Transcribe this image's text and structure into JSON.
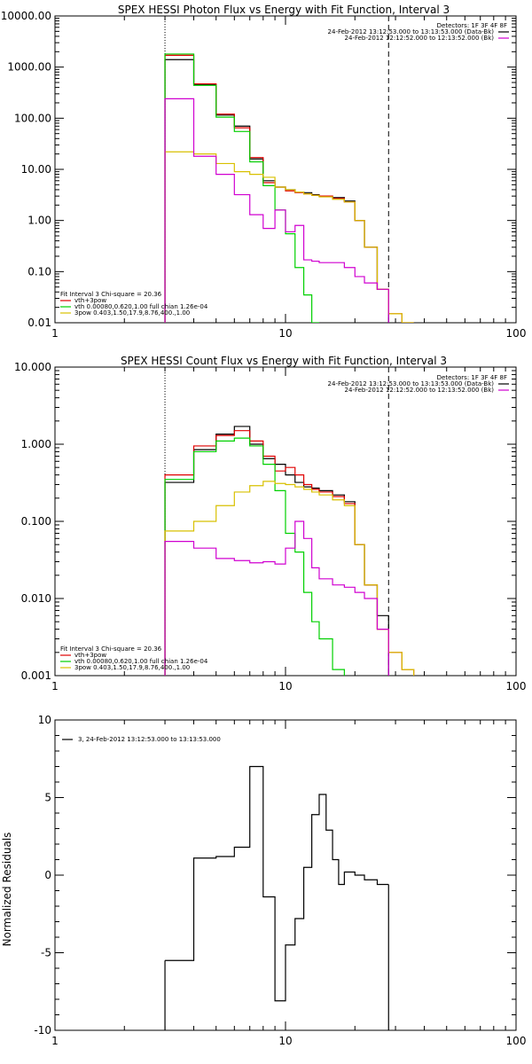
{
  "colors": {
    "background": "#ffffff",
    "axis": "#000000",
    "black_series": "#000000",
    "red_series": "#e00000",
    "green_series": "#00d000",
    "yellow_series": "#d8c000",
    "magenta_series": "#d000d0"
  },
  "chart_data": [
    {
      "type": "line",
      "title": "SPEX HESSI Photon Flux vs Energy with Fit Function, Interval 3",
      "xscale": "log",
      "yscale": "log",
      "xlim": [
        1,
        100
      ],
      "ylim": [
        0.01,
        10000
      ],
      "xticks": [
        1,
        10,
        100
      ],
      "xtick_labels": [
        "1",
        "10",
        "100"
      ],
      "yticks": [
        0.01,
        0.1,
        1,
        10,
        100,
        1000,
        10000
      ],
      "ytick_labels": [
        "0.01",
        "0.10",
        "1.00",
        "10.00",
        "100.00",
        "1000.00",
        "10000.00"
      ],
      "vlines": [
        {
          "x": 3.0,
          "style": "dotted"
        },
        {
          "x": 28.0,
          "style": "dashed"
        }
      ],
      "legend_top_right": {
        "header": "Detectors: 1F 3F 4F 8F",
        "lines": [
          {
            "text": "24-Feb-2012 13:12:53.000 to 13:13:53.000 (Data-Bk)",
            "color": "#000000"
          },
          {
            "text": "24-Feb-2012 12:12:52.000 to 12:13:52.000 (Bk)",
            "color": "#d000d0"
          }
        ]
      },
      "legend_bottom_left": {
        "header": "Fit Interval 3   Chi-square = 20.36",
        "lines": [
          {
            "text": "vth+3pow",
            "color": "#e00000"
          },
          {
            "text": "vth 0.00080,0.620,1.00   full chian 1.26e-04",
            "color": "#00d000"
          },
          {
            "text": "3pow 0.403,1.50,17.9,8.76,400.,1.00",
            "color": "#d8c000"
          }
        ]
      },
      "bin_edges": [
        3,
        4,
        5,
        6,
        7,
        8,
        9,
        10,
        11,
        12,
        13,
        14,
        16,
        18,
        20,
        22,
        25,
        28,
        32,
        36
      ],
      "series": [
        {
          "name": "Data-Bk",
          "color": "#000000",
          "values": [
            1400,
            450,
            115,
            70,
            16,
            6,
            4.5,
            4.0,
            3.6,
            3.5,
            3.2,
            3.0,
            2.8,
            2.4,
            1.0,
            0.3,
            0.045,
            null,
            null
          ]
        },
        {
          "name": "vth+3pow",
          "color": "#e00000",
          "values": [
            1700,
            470,
            120,
            65,
            17,
            5.5,
            4.5,
            3.8,
            3.5,
            3.3,
            3.1,
            3.0,
            2.7,
            2.3,
            1.0,
            0.3,
            0.045,
            0.015,
            0.008
          ]
        },
        {
          "name": "vth",
          "color": "#00d000",
          "values": [
            1800,
            440,
            105,
            55,
            14,
            4.8,
            1.6,
            0.55,
            0.12,
            0.035,
            0.009,
            null,
            null,
            null,
            null,
            null,
            null,
            null,
            null
          ]
        },
        {
          "name": "3pow",
          "color": "#d8c000",
          "values": [
            22,
            20,
            13,
            9,
            8,
            7,
            4.5,
            4.0,
            3.6,
            3.3,
            3.1,
            2.9,
            2.6,
            2.3,
            1.0,
            0.3,
            0.045,
            0.015,
            0.008
          ]
        },
        {
          "name": "Bk",
          "color": "#d000d0",
          "values": [
            240,
            18,
            8,
            3.2,
            1.3,
            0.7,
            1.6,
            0.6,
            0.8,
            0.17,
            0.16,
            0.15,
            0.15,
            0.12,
            0.08,
            0.06,
            0.045,
            null,
            null
          ]
        }
      ]
    },
    {
      "type": "line",
      "title": "SPEX HESSI Count Flux vs Energy with Fit Function, Interval 3",
      "xscale": "log",
      "yscale": "log",
      "xlim": [
        1,
        100
      ],
      "ylim": [
        0.001,
        10
      ],
      "xticks": [
        1,
        10,
        100
      ],
      "xtick_labels": [
        "1",
        "10",
        "100"
      ],
      "yticks": [
        0.001,
        0.01,
        0.1,
        1,
        10
      ],
      "ytick_labels": [
        "0.001",
        "0.010",
        "0.100",
        "1.000",
        "10.000"
      ],
      "vlines": [
        {
          "x": 3.0,
          "style": "dotted"
        },
        {
          "x": 28.0,
          "style": "dashed"
        }
      ],
      "legend_top_right": {
        "header": "Detectors: 1F 3F 4F 8F",
        "lines": [
          {
            "text": "24-Feb-2012 13:12:53.000 to 13:13:53.000 (Data-Bk)",
            "color": "#000000"
          },
          {
            "text": "24-Feb-2012 12:12:52.000 to 12:13:52.000 (Bk)",
            "color": "#d000d0"
          }
        ]
      },
      "legend_bottom_left": {
        "header": "Fit Interval 3   Chi-square = 20.36",
        "lines": [
          {
            "text": "vth+3pow",
            "color": "#e00000"
          },
          {
            "text": "vth 0.00080,0.620,1.00   full chian 1.26e-04",
            "color": "#00d000"
          },
          {
            "text": "3pow 0.403,1.50,17.9,8.76,400.,1.00",
            "color": "#d8c000"
          }
        ]
      },
      "bin_edges": [
        3,
        4,
        5,
        6,
        7,
        8,
        9,
        10,
        11,
        12,
        13,
        14,
        16,
        18,
        20,
        22,
        25,
        28,
        32,
        36
      ],
      "series": [
        {
          "name": "Data-Bk",
          "color": "#000000",
          "values": [
            0.32,
            0.85,
            1.35,
            1.7,
            1.0,
            0.65,
            0.55,
            0.4,
            0.32,
            0.28,
            0.27,
            0.25,
            0.22,
            0.18,
            0.05,
            0.015,
            0.006,
            null,
            null
          ]
        },
        {
          "name": "vth+3pow",
          "color": "#e00000",
          "values": [
            0.4,
            0.95,
            1.3,
            1.5,
            1.1,
            0.7,
            0.45,
            0.5,
            0.4,
            0.3,
            0.26,
            0.24,
            0.21,
            0.17,
            0.05,
            0.015,
            0.004,
            0.002,
            0.0012
          ]
        },
        {
          "name": "vth",
          "color": "#00d000",
          "values": [
            0.35,
            0.8,
            1.1,
            1.2,
            0.95,
            0.55,
            0.25,
            0.07,
            0.04,
            0.012,
            0.005,
            0.003,
            0.0012,
            null,
            null,
            null,
            null,
            null,
            null
          ]
        },
        {
          "name": "3pow",
          "color": "#d8c000",
          "values": [
            0.075,
            0.1,
            0.16,
            0.24,
            0.29,
            0.33,
            0.31,
            0.3,
            0.28,
            0.26,
            0.24,
            0.22,
            0.19,
            0.16,
            0.05,
            0.015,
            0.004,
            0.002,
            0.0012
          ]
        },
        {
          "name": "Bk",
          "color": "#d000d0",
          "values": [
            0.055,
            0.045,
            0.033,
            0.031,
            0.029,
            0.03,
            0.028,
            0.045,
            0.1,
            0.06,
            0.025,
            0.018,
            0.015,
            0.014,
            0.012,
            0.01,
            0.004,
            null,
            null
          ]
        }
      ]
    },
    {
      "type": "line",
      "title": "",
      "xscale": "log",
      "yscale": "linear",
      "xlim": [
        1,
        100
      ],
      "ylim": [
        -10,
        10
      ],
      "xticks": [
        1,
        10,
        100
      ],
      "xtick_labels": [
        "1",
        "10",
        "100"
      ],
      "yticks": [
        -10,
        -5,
        0,
        5,
        10
      ],
      "ytick_labels": [
        "-10",
        "-5",
        "0",
        "5",
        "10"
      ],
      "ylabel": "Normalized Residuals",
      "legend_top_left": {
        "lines": [
          {
            "text": "3, 24-Feb-2012 13:12:53.000 to 13:13:53.000",
            "color": "#000000"
          }
        ]
      },
      "bin_edges": [
        3,
        4,
        5,
        6,
        7,
        8,
        9,
        10,
        11,
        12,
        13,
        14,
        15,
        16,
        17,
        18,
        20,
        22,
        25,
        28
      ],
      "series": [
        {
          "name": "residuals",
          "color": "#000000",
          "values": [
            -5.5,
            1.1,
            1.2,
            1.8,
            7.0,
            -1.4,
            -8.1,
            -4.5,
            -2.8,
            0.5,
            3.9,
            5.2,
            2.9,
            1.0,
            -0.6,
            0.2,
            0.0,
            -0.3,
            -0.6
          ]
        }
      ]
    }
  ]
}
